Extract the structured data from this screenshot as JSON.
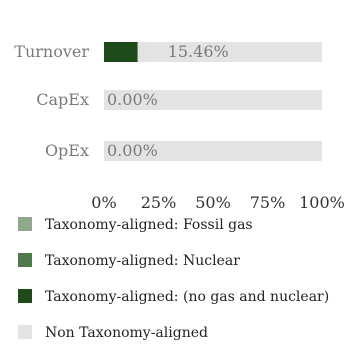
{
  "chart_data": {
    "type": "bar",
    "orientation": "horizontal",
    "stacked": true,
    "categories": [
      "Turnover",
      "CapEx",
      "OpEx"
    ],
    "value_labels": [
      "15.46%",
      "0.00%",
      "0.00%"
    ],
    "series": [
      {
        "name": "Taxonomy-aligned: Fossil gas",
        "color": "#8fa88c",
        "values": [
          0,
          0,
          0
        ]
      },
      {
        "name": "Taxonomy-aligned: Nuclear",
        "color": "#4f7a4c",
        "values": [
          0,
          0,
          0
        ]
      },
      {
        "name": "Taxonomy-aligned: (no gas and nuclear)",
        "color": "#1f4a1b",
        "values": [
          15.46,
          0,
          0
        ]
      },
      {
        "name": "Non Taxonomy-aligned",
        "color": "#e3e3e3",
        "values": [
          84.54,
          100,
          100
        ]
      }
    ],
    "x_ticks": [
      "0%",
      "25%",
      "50%",
      "75%",
      "100%"
    ],
    "xlim": [
      0,
      100
    ],
    "legend_position": "bottom",
    "grid": false
  }
}
